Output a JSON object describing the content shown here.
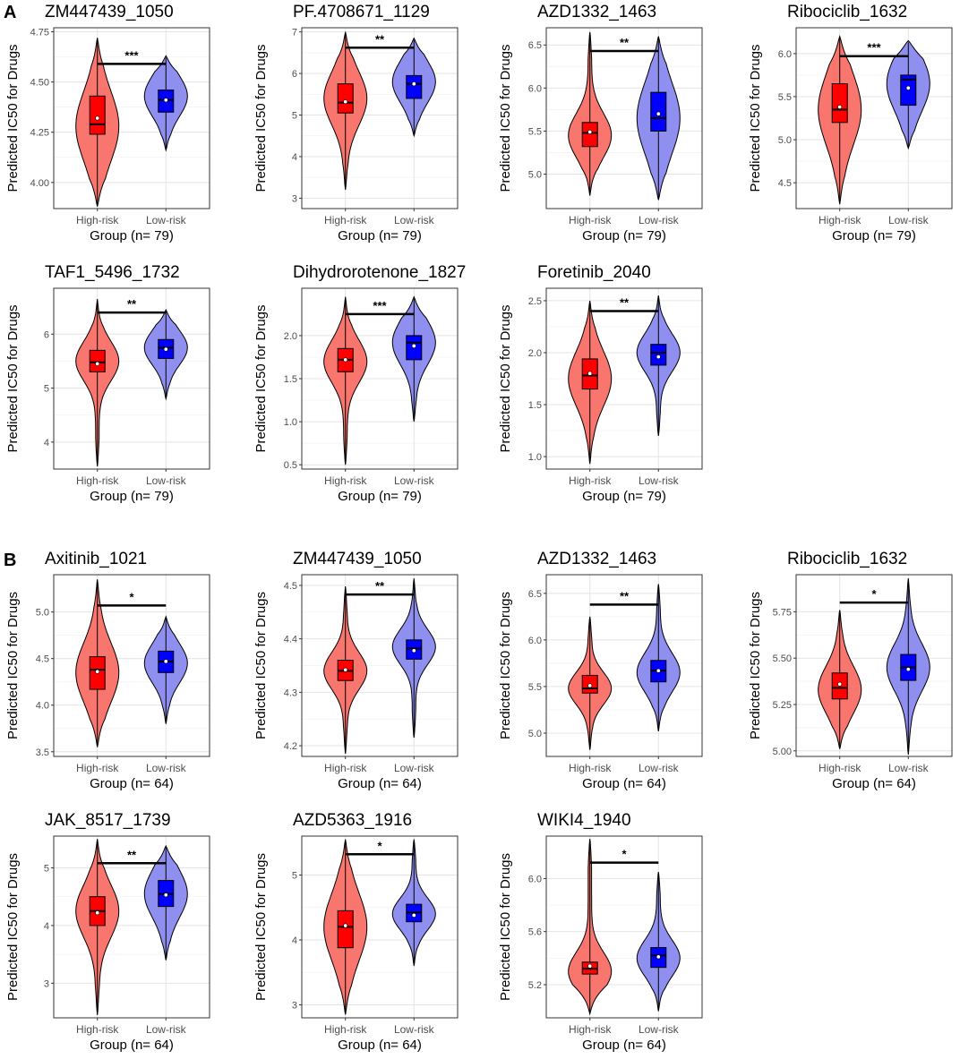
{
  "panels": [
    {
      "letter": "A",
      "ylabel": "Predicted IC50 for Drugs",
      "xlabel": "Group (n= 79)"
    },
    {
      "letter": "B",
      "ylabel": "Predicted IC50 for Drugs",
      "xlabel": "Group (n= 64)"
    }
  ],
  "colors": {
    "high_fill": "#f8766d",
    "high_box": "#ff0000",
    "low_fill": "#8f8ff0",
    "low_box": "#0000ff"
  },
  "chart_data": [
    {
      "type": "violin",
      "panel": "A",
      "title": "ZM447439_1050",
      "categories": [
        "High-risk",
        "Low-risk"
      ],
      "ylabel": "Predicted IC50 for Drugs",
      "xlabel": "Group (n= 79)",
      "ylim": [
        3.87,
        4.77
      ],
      "yticks": [
        4.0,
        4.25,
        4.5,
        4.75
      ],
      "yticklabels": [
        "4.00",
        "4.25",
        "4.50",
        "4.75"
      ],
      "significance": "***",
      "sig_y": 4.59,
      "groups": [
        {
          "name": "High-risk",
          "min": 3.88,
          "q1": 4.24,
          "median": 4.29,
          "q3": 4.43,
          "max": 4.72,
          "mean": 4.32,
          "mode": 4.28
        },
        {
          "name": "Low-risk",
          "min": 4.16,
          "q1": 4.35,
          "median": 4.41,
          "q3": 4.46,
          "max": 4.63,
          "mean": 4.41,
          "mode": 4.43
        }
      ]
    },
    {
      "type": "violin",
      "panel": "A",
      "title": "PF.4708671_1129",
      "categories": [
        "High-risk",
        "Low-risk"
      ],
      "ylabel": "Predicted IC50 for Drugs",
      "xlabel": "Group (n= 79)",
      "ylim": [
        2.75,
        7.1
      ],
      "yticks": [
        3,
        4,
        5,
        6,
        7
      ],
      "yticklabels": [
        "3",
        "4",
        "5",
        "6",
        "7"
      ],
      "significance": "**",
      "sig_y": 6.62,
      "groups": [
        {
          "name": "High-risk",
          "min": 3.2,
          "q1": 5.05,
          "median": 5.3,
          "q3": 5.75,
          "max": 7.0,
          "mean": 5.32,
          "mode": 5.4
        },
        {
          "name": "Low-risk",
          "min": 4.5,
          "q1": 5.4,
          "median": 5.75,
          "q3": 5.95,
          "max": 6.85,
          "mean": 5.75,
          "mode": 5.8
        }
      ]
    },
    {
      "type": "violin",
      "panel": "A",
      "title": "AZD1332_1463",
      "categories": [
        "High-risk",
        "Low-risk"
      ],
      "ylabel": "Predicted IC50 for Drugs",
      "xlabel": "Group (n= 79)",
      "ylim": [
        4.6,
        6.7
      ],
      "yticks": [
        5.0,
        5.5,
        6.0,
        6.5
      ],
      "yticklabels": [
        "5.0",
        "5.5",
        "6.0",
        "6.5"
      ],
      "significance": "**",
      "sig_y": 6.43,
      "groups": [
        {
          "name": "High-risk",
          "min": 4.75,
          "q1": 5.32,
          "median": 5.48,
          "q3": 5.6,
          "max": 6.65,
          "mean": 5.49,
          "mode": 5.45
        },
        {
          "name": "Low-risk",
          "min": 4.7,
          "q1": 5.5,
          "median": 5.65,
          "q3": 5.95,
          "max": 6.6,
          "mean": 5.7,
          "mode": 5.65
        }
      ]
    },
    {
      "type": "violin",
      "panel": "A",
      "title": "Ribociclib_1632",
      "categories": [
        "High-risk",
        "Low-risk"
      ],
      "ylabel": "Predicted IC50 for Drugs",
      "xlabel": "Group (n= 79)",
      "ylim": [
        4.2,
        6.3
      ],
      "yticks": [
        4.5,
        5.0,
        5.5,
        6.0
      ],
      "yticklabels": [
        "4.5",
        "5.0",
        "5.5",
        "6.0"
      ],
      "significance": "***",
      "sig_y": 5.97,
      "groups": [
        {
          "name": "High-risk",
          "min": 4.25,
          "q1": 5.2,
          "median": 5.35,
          "q3": 5.65,
          "max": 6.2,
          "mean": 5.38,
          "mode": 5.35
        },
        {
          "name": "Low-risk",
          "min": 4.9,
          "q1": 5.4,
          "median": 5.7,
          "q3": 5.75,
          "max": 6.15,
          "mean": 5.6,
          "mode": 5.65
        }
      ]
    },
    {
      "type": "violin",
      "panel": "A",
      "title": "TAF1_5496_1732",
      "categories": [
        "High-risk",
        "Low-risk"
      ],
      "ylabel": "Predicted IC50 for Drugs",
      "xlabel": "Group (n= 79)",
      "ylim": [
        3.5,
        6.85
      ],
      "yticks": [
        4,
        5,
        6
      ],
      "yticklabels": [
        "4",
        "5",
        "6"
      ],
      "significance": "**",
      "sig_y": 6.4,
      "groups": [
        {
          "name": "High-risk",
          "min": 3.55,
          "q1": 5.3,
          "median": 5.48,
          "q3": 5.7,
          "max": 6.65,
          "mean": 5.45,
          "mode": 5.5
        },
        {
          "name": "Low-risk",
          "min": 4.8,
          "q1": 5.55,
          "median": 5.75,
          "q3": 5.9,
          "max": 6.45,
          "mean": 5.72,
          "mode": 5.75
        }
      ]
    },
    {
      "type": "violin",
      "panel": "A",
      "title": "Dihydrorotenone_1827",
      "categories": [
        "High-risk",
        "Low-risk"
      ],
      "ylabel": "Predicted IC50 for Drugs",
      "xlabel": "Group (n= 79)",
      "ylim": [
        0.45,
        2.55
      ],
      "yticks": [
        0.5,
        1.0,
        1.5,
        2.0
      ],
      "yticklabels": [
        "0.5",
        "1.0",
        "1.5",
        "2.0"
      ],
      "significance": "***",
      "sig_y": 2.25,
      "groups": [
        {
          "name": "High-risk",
          "min": 0.5,
          "q1": 1.58,
          "median": 1.72,
          "q3": 1.85,
          "max": 2.45,
          "mean": 1.72,
          "mode": 1.7
        },
        {
          "name": "Low-risk",
          "min": 1.0,
          "q1": 1.72,
          "median": 1.92,
          "q3": 2.0,
          "max": 2.45,
          "mean": 1.88,
          "mode": 1.92
        }
      ]
    },
    {
      "type": "violin",
      "panel": "A",
      "title": "Foretinib_2040",
      "categories": [
        "High-risk",
        "Low-risk"
      ],
      "ylabel": "Predicted IC50 for Drugs",
      "xlabel": "Group (n= 79)",
      "ylim": [
        0.88,
        2.62
      ],
      "yticks": [
        1.0,
        1.5,
        2.0,
        2.5
      ],
      "yticklabels": [
        "1.0",
        "1.5",
        "2.0",
        "2.5"
      ],
      "significance": "**",
      "sig_y": 2.4,
      "groups": [
        {
          "name": "High-risk",
          "min": 0.93,
          "q1": 1.65,
          "median": 1.78,
          "q3": 1.94,
          "max": 2.5,
          "mean": 1.8,
          "mode": 1.75
        },
        {
          "name": "Low-risk",
          "min": 1.2,
          "q1": 1.88,
          "median": 2.0,
          "q3": 2.08,
          "max": 2.55,
          "mean": 1.96,
          "mode": 2.0
        }
      ]
    },
    {
      "type": "violin",
      "panel": "B",
      "title": "Axitinib_1021",
      "categories": [
        "High-risk",
        "Low-risk"
      ],
      "ylabel": "Predicted IC50 for Drugs",
      "xlabel": "Group (n= 64)",
      "ylim": [
        3.45,
        5.4
      ],
      "yticks": [
        3.5,
        4.0,
        4.5,
        5.0
      ],
      "yticklabels": [
        "3.5",
        "4.0",
        "4.5",
        "5.0"
      ],
      "significance": "*",
      "sig_y": 5.07,
      "groups": [
        {
          "name": "High-risk",
          "min": 3.55,
          "q1": 4.17,
          "median": 4.38,
          "q3": 4.52,
          "max": 5.35,
          "mean": 4.36,
          "mode": 4.35
        },
        {
          "name": "Low-risk",
          "min": 3.8,
          "q1": 4.35,
          "median": 4.47,
          "q3": 4.58,
          "max": 4.95,
          "mean": 4.47,
          "mode": 4.45
        }
      ]
    },
    {
      "type": "violin",
      "panel": "B",
      "title": "ZM447439_1050",
      "categories": [
        "High-risk",
        "Low-risk"
      ],
      "ylabel": "Predicted IC50 for Drugs",
      "xlabel": "Group (n= 64)",
      "ylim": [
        4.18,
        4.52
      ],
      "yticks": [
        4.2,
        4.3,
        4.4,
        4.5
      ],
      "yticklabels": [
        "4.2",
        "4.3",
        "4.4",
        "4.5"
      ],
      "significance": "**",
      "sig_y": 4.483,
      "groups": [
        {
          "name": "High-risk",
          "min": 4.185,
          "q1": 4.322,
          "median": 4.34,
          "q3": 4.36,
          "max": 4.498,
          "mean": 4.342,
          "mode": 4.34
        },
        {
          "name": "Low-risk",
          "min": 4.215,
          "q1": 4.362,
          "median": 4.382,
          "q3": 4.398,
          "max": 4.513,
          "mean": 4.378,
          "mode": 4.385
        }
      ]
    },
    {
      "type": "violin",
      "panel": "B",
      "title": "AZD1332_1463",
      "categories": [
        "High-risk",
        "Low-risk"
      ],
      "ylabel": "Predicted IC50 for Drugs",
      "xlabel": "Group (n= 64)",
      "ylim": [
        4.75,
        6.7
      ],
      "yticks": [
        5.0,
        5.5,
        6.0,
        6.5
      ],
      "yticklabels": [
        "5.0",
        "5.5",
        "6.0",
        "6.5"
      ],
      "significance": "**",
      "sig_y": 6.38,
      "groups": [
        {
          "name": "High-risk",
          "min": 4.82,
          "q1": 5.43,
          "median": 5.48,
          "q3": 5.62,
          "max": 6.25,
          "mean": 5.51,
          "mode": 5.48
        },
        {
          "name": "Low-risk",
          "min": 5.02,
          "q1": 5.55,
          "median": 5.67,
          "q3": 5.78,
          "max": 6.6,
          "mean": 5.67,
          "mode": 5.65
        }
      ]
    },
    {
      "type": "violin",
      "panel": "B",
      "title": "Ribociclib_1632",
      "categories": [
        "High-risk",
        "Low-risk"
      ],
      "ylabel": "Predicted IC50 for Drugs",
      "xlabel": "Group (n= 64)",
      "ylim": [
        4.97,
        5.95
      ],
      "yticks": [
        5.0,
        5.25,
        5.5,
        5.75
      ],
      "yticklabels": [
        "5.00",
        "5.25",
        "5.50",
        "5.75"
      ],
      "significance": "*",
      "sig_y": 5.8,
      "groups": [
        {
          "name": "High-risk",
          "min": 5.01,
          "q1": 5.28,
          "median": 5.34,
          "q3": 5.42,
          "max": 5.76,
          "mean": 5.36,
          "mode": 5.33
        },
        {
          "name": "Low-risk",
          "min": 4.98,
          "q1": 5.38,
          "median": 5.45,
          "q3": 5.52,
          "max": 5.93,
          "mean": 5.44,
          "mode": 5.45
        }
      ]
    },
    {
      "type": "violin",
      "panel": "B",
      "title": "JAK_8517_1739",
      "categories": [
        "High-risk",
        "Low-risk"
      ],
      "ylabel": "Predicted IC50 for Drugs",
      "xlabel": "Group (n= 64)",
      "ylim": [
        2.4,
        5.55
      ],
      "yticks": [
        3,
        4,
        5
      ],
      "yticklabels": [
        "3",
        "4",
        "5"
      ],
      "significance": "**",
      "sig_y": 5.08,
      "groups": [
        {
          "name": "High-risk",
          "min": 2.45,
          "q1": 4.0,
          "median": 4.25,
          "q3": 4.5,
          "max": 5.5,
          "mean": 4.22,
          "mode": 4.25
        },
        {
          "name": "Low-risk",
          "min": 3.4,
          "q1": 4.33,
          "median": 4.55,
          "q3": 4.78,
          "max": 5.38,
          "mean": 4.53,
          "mode": 4.55
        }
      ]
    },
    {
      "type": "violin",
      "panel": "B",
      "title": "AZD5363_1916",
      "categories": [
        "High-risk",
        "Low-risk"
      ],
      "ylabel": "Predicted IC50 for Drugs",
      "xlabel": "Group (n= 64)",
      "ylim": [
        2.8,
        5.6
      ],
      "yticks": [
        3,
        4,
        5
      ],
      "yticklabels": [
        "3",
        "4",
        "5"
      ],
      "significance": "*",
      "sig_y": 5.32,
      "groups": [
        {
          "name": "High-risk",
          "min": 2.85,
          "q1": 3.88,
          "median": 4.2,
          "q3": 4.45,
          "max": 5.55,
          "mean": 4.22,
          "mode": 4.2
        },
        {
          "name": "Low-risk",
          "min": 3.6,
          "q1": 4.28,
          "median": 4.42,
          "q3": 4.55,
          "max": 5.55,
          "mean": 4.38,
          "mode": 4.4
        }
      ]
    },
    {
      "type": "violin",
      "panel": "B",
      "title": "WIKI4_1940",
      "categories": [
        "High-risk",
        "Low-risk"
      ],
      "ylabel": "Predicted IC50 for Drugs",
      "xlabel": "Group (n= 64)",
      "ylim": [
        4.95,
        6.32
      ],
      "yticks": [
        5.2,
        5.6,
        6.0
      ],
      "yticklabels": [
        "5.2",
        "5.6",
        "6.0"
      ],
      "significance": "*",
      "sig_y": 6.12,
      "groups": [
        {
          "name": "High-risk",
          "min": 4.98,
          "q1": 5.28,
          "median": 5.32,
          "q3": 5.37,
          "max": 6.3,
          "mean": 5.34,
          "mode": 5.3
        },
        {
          "name": "Low-risk",
          "min": 5.0,
          "q1": 5.33,
          "median": 5.42,
          "q3": 5.48,
          "max": 6.05,
          "mean": 5.41,
          "mode": 5.4
        }
      ]
    }
  ]
}
